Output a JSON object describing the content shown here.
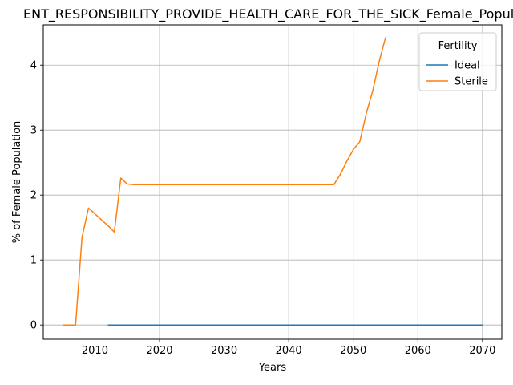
{
  "chart_data": {
    "type": "line",
    "title": "ENT_RESPONSIBILITY_PROVIDE_HEALTH_CARE_FOR_THE_SICK_Female_Popula",
    "xlabel": "Years",
    "ylabel": "% of Female Population",
    "xlim": [
      2002,
      2073
    ],
    "ylim": [
      -0.22,
      4.62
    ],
    "xticks": [
      2010,
      2020,
      2030,
      2040,
      2050,
      2060,
      2070
    ],
    "yticks": [
      0,
      1,
      2,
      3,
      4
    ],
    "grid": true,
    "legend": {
      "title": "Fertility",
      "placement": "top-right"
    },
    "series": [
      {
        "name": "Ideal",
        "color": "#1f77b4",
        "x": [
          2012,
          2020,
          2030,
          2040,
          2050,
          2060,
          2070
        ],
        "y": [
          0,
          0,
          0,
          0,
          0,
          0,
          0
        ]
      },
      {
        "name": "Sterile",
        "color": "#ff7f0e",
        "x": [
          2005,
          2006,
          2007,
          2008,
          2009,
          2010,
          2011,
          2012,
          2013,
          2014,
          2015,
          2016,
          2020,
          2030,
          2040,
          2046,
          2047,
          2048,
          2049,
          2050,
          2051,
          2052,
          2053,
          2054,
          2055
        ],
        "y": [
          0,
          0,
          0,
          1.35,
          1.8,
          1.71,
          1.62,
          1.53,
          1.43,
          2.26,
          2.17,
          2.16,
          2.16,
          2.16,
          2.16,
          2.16,
          2.16,
          2.32,
          2.52,
          2.7,
          2.82,
          3.25,
          3.6,
          4.05,
          4.43
        ]
      }
    ]
  }
}
